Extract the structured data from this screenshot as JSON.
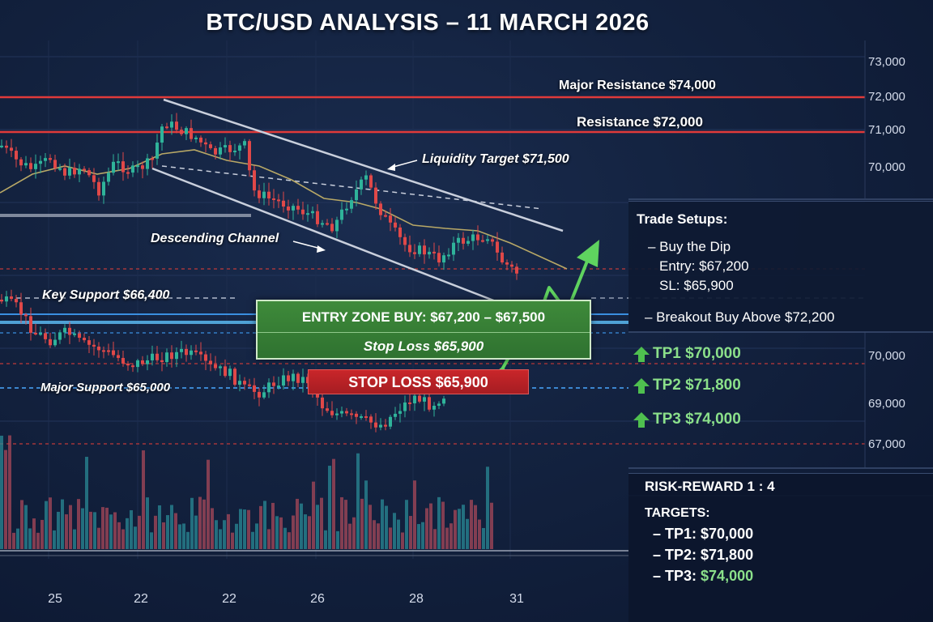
{
  "title": "BTC/USD ANALYSIS – 11 MARCH 2026",
  "chart_data": {
    "type": "candlestick",
    "y_ticks": [
      "73,000",
      "72,000",
      "71,000",
      "70,000",
      "70,000",
      "69,000",
      "67,000"
    ],
    "x_ticks": [
      "25",
      "22",
      "22",
      "26",
      "28",
      "31"
    ],
    "levels": [
      {
        "label": "Major Resistance $74,000",
        "color": "#e03a3a"
      },
      {
        "label": "Resistance $72,000",
        "color": "#e03a3a"
      },
      {
        "label": "Key Support $66,400",
        "color": "#d0d8e8"
      },
      {
        "label": "Major Support $65,000",
        "color": "#4aa8ff"
      }
    ],
    "annotations": {
      "liquidity_target": "Liquidity Target $71,500",
      "channel": "Descending Channel"
    },
    "entry_zone": {
      "line1": "ENTRY ZONE BUY: $67,200 – $67,500",
      "line2": "Stop Loss $65,900"
    },
    "stop_loss": "STOP LOSS $65,900",
    "up_color": "#2fb39a",
    "down_color": "#e04848"
  },
  "panel": {
    "title": "Trade Setups:",
    "setup1": "– Buy the Dip",
    "entry": "Entry: $67,200",
    "sl": "SL: $65,900",
    "setup2": "– Breakout Buy Above $72,200"
  },
  "targets_side": [
    "TP1 $70,000",
    "TP2 $71,800",
    "TP3 $74,000"
  ],
  "risk": {
    "label": "RISK-REWARD 1 : 4",
    "targets_title": "TARGETS:",
    "tp1": "– TP1: $70,000",
    "tp2": "– TP2: $71,800",
    "tp3_prefix": "– TP3: ",
    "tp3_value": "$74,000"
  }
}
